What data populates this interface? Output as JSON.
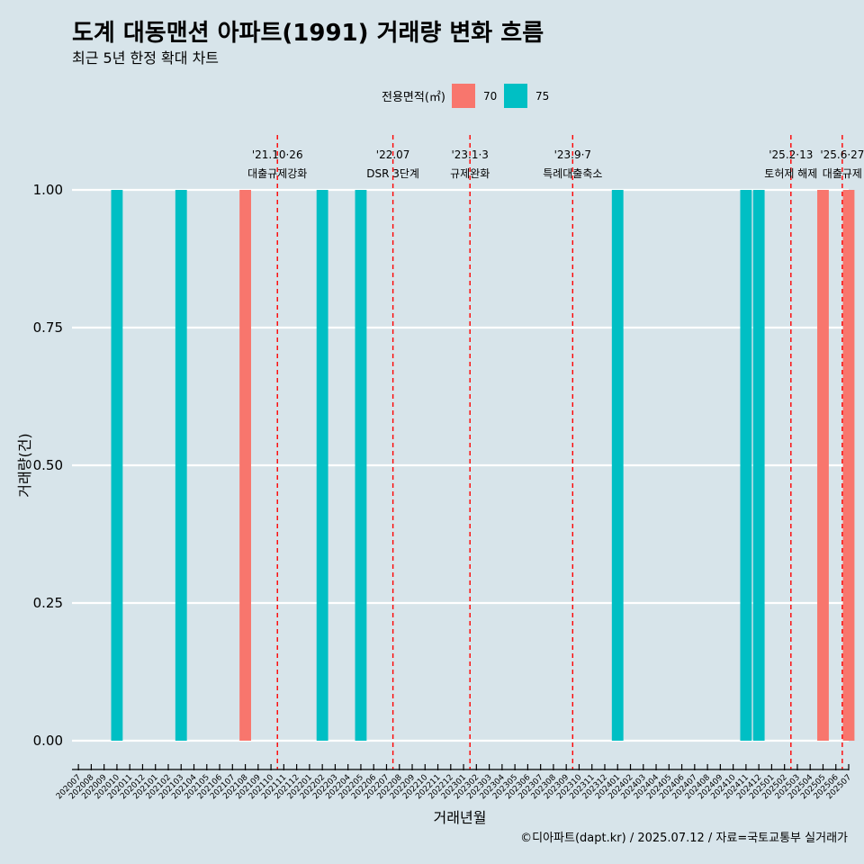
{
  "chart_data": {
    "type": "bar",
    "title": "도계 대동맨션 아파트(1991) 거래량 변화 흐름",
    "subtitle": "최근 5년 한정 확대 차트",
    "xlabel": "거래년월",
    "ylabel": "거래량(건)",
    "ylim": [
      0,
      1.0
    ],
    "yticks": [
      "0.00",
      "0.25",
      "0.50",
      "0.75",
      "1.00"
    ],
    "grid": true,
    "legend": {
      "title": "전용면적(㎡)",
      "position": "top",
      "entries": [
        {
          "name": "70",
          "color": "#f8766d"
        },
        {
          "name": "75",
          "color": "#00bfc4"
        }
      ]
    },
    "categories": [
      "202007",
      "202008",
      "202009",
      "202010",
      "202011",
      "202012",
      "202101",
      "202102",
      "202103",
      "202104",
      "202105",
      "202106",
      "202107",
      "202108",
      "202109",
      "202110",
      "202111",
      "202112",
      "202201",
      "202202",
      "202203",
      "202204",
      "202205",
      "202206",
      "202207",
      "202208",
      "202209",
      "202210",
      "202211",
      "202212",
      "202301",
      "202302",
      "202303",
      "202304",
      "202305",
      "202306",
      "202307",
      "202308",
      "202309",
      "202310",
      "202311",
      "202312",
      "202401",
      "202402",
      "202403",
      "202404",
      "202405",
      "202406",
      "202407",
      "202408",
      "202409",
      "202410",
      "202411",
      "202412",
      "202501",
      "202502",
      "202503",
      "202504",
      "202505",
      "202506",
      "202507"
    ],
    "bars": [
      {
        "month": "202010",
        "area": "75",
        "value": 1
      },
      {
        "month": "202103",
        "area": "75",
        "value": 1
      },
      {
        "month": "202108",
        "area": "70",
        "value": 1
      },
      {
        "month": "202202",
        "area": "75",
        "value": 1
      },
      {
        "month": "202205",
        "area": "75",
        "value": 1
      },
      {
        "month": "202401",
        "area": "75",
        "value": 1
      },
      {
        "month": "202411",
        "area": "75",
        "value": 1
      },
      {
        "month": "202412",
        "area": "75",
        "value": 1
      },
      {
        "month": "202505",
        "area": "70",
        "value": 1
      },
      {
        "month": "202507",
        "area": "70",
        "value": 1
      }
    ],
    "events": [
      {
        "date": "'21.10·26",
        "label": "대출규제강화",
        "at_month": 15.5
      },
      {
        "date": "'22.07",
        "label": "DSR 3단계",
        "at_month": 24.5
      },
      {
        "date": "'23.1·3",
        "label": "규제완화",
        "at_month": 30.5
      },
      {
        "date": "'23.9·7",
        "label": "특례대출축소",
        "at_month": 38.5
      },
      {
        "date": "'25.2·13",
        "label": "토허제 해제",
        "at_month": 55.5
      },
      {
        "date": "'25.6·27",
        "label": "대출규제",
        "at_month": 59.5
      }
    ],
    "caption": "©디아파트(dapt.kr) / 2025.07.12 / 자료=국토교통부 실거래가"
  }
}
